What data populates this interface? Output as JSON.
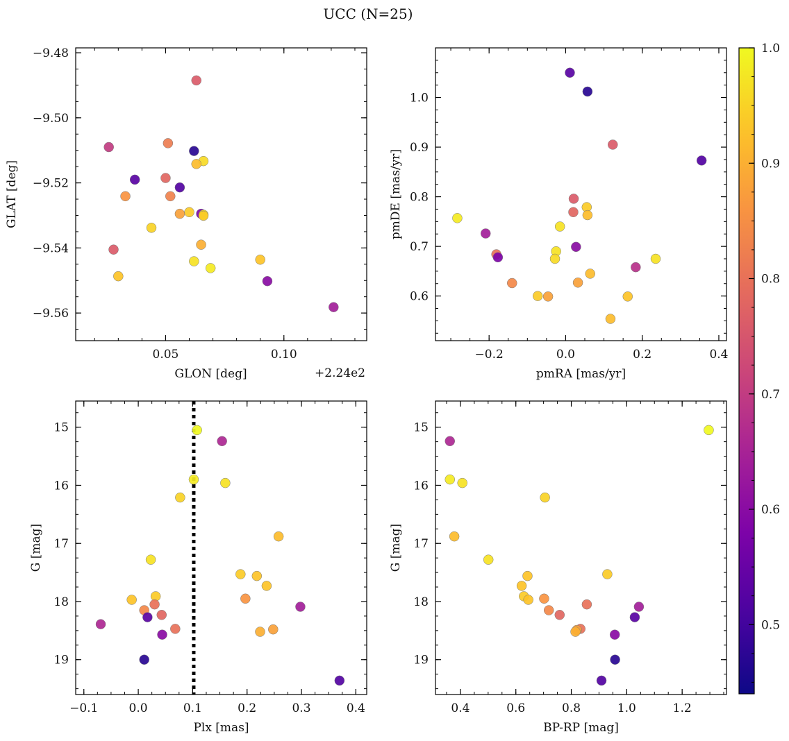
{
  "figure": {
    "suptitle": "UCC (N=25)"
  },
  "colorbar": {
    "min": 0.44,
    "max": 1.0,
    "ticks": [
      "0.5",
      "0.6",
      "0.7",
      "0.8",
      "0.9",
      "1.0"
    ],
    "colormap": "plasma"
  },
  "chart_data": [
    {
      "type": "scatter",
      "xlabel": "GLON [deg]",
      "ylabel": "GLAT [deg]",
      "offset_text": "+2.24e2",
      "xlim": [
        224.012,
        224.135
      ],
      "ylim": [
        -9.5685,
        -9.4785
      ],
      "y_inverted": false,
      "xticks": [
        {
          "value": 224.05,
          "label": "0.05"
        },
        {
          "value": 224.1,
          "label": "0.10"
        }
      ],
      "yticks": [
        {
          "value": -9.48,
          "label": "−9.48"
        },
        {
          "value": -9.5,
          "label": "−9.50"
        },
        {
          "value": -9.52,
          "label": "−9.52"
        },
        {
          "value": -9.54,
          "label": "−9.54"
        },
        {
          "value": -9.56,
          "label": "−9.56"
        }
      ],
      "points": [
        {
          "x": 224.063,
          "y": -9.4885,
          "c": 0.76
        },
        {
          "x": 224.026,
          "y": -9.509,
          "c": 0.7
        },
        {
          "x": 224.051,
          "y": -9.5078,
          "c": 0.82
        },
        {
          "x": 224.062,
          "y": -9.5102,
          "c": 0.47
        },
        {
          "x": 224.066,
          "y": -9.5133,
          "c": 0.96
        },
        {
          "x": 224.063,
          "y": -9.5142,
          "c": 0.92
        },
        {
          "x": 224.037,
          "y": -9.519,
          "c": 0.53
        },
        {
          "x": 224.05,
          "y": -9.5185,
          "c": 0.78
        },
        {
          "x": 224.056,
          "y": -9.5214,
          "c": 0.52
        },
        {
          "x": 224.033,
          "y": -9.5241,
          "c": 0.86
        },
        {
          "x": 224.052,
          "y": -9.5241,
          "c": 0.83
        },
        {
          "x": 224.056,
          "y": -9.5295,
          "c": 0.88
        },
        {
          "x": 224.06,
          "y": -9.529,
          "c": 0.94
        },
        {
          "x": 224.065,
          "y": -9.5295,
          "c": 0.58
        },
        {
          "x": 224.066,
          "y": -9.5298,
          "c": 0.97
        },
        {
          "x": 224.066,
          "y": -9.5301,
          "c": 0.94
        },
        {
          "x": 224.044,
          "y": -9.5338,
          "c": 0.95
        },
        {
          "x": 224.065,
          "y": -9.539,
          "c": 0.9
        },
        {
          "x": 224.028,
          "y": -9.5405,
          "c": 0.76
        },
        {
          "x": 224.062,
          "y": -9.5441,
          "c": 0.97
        },
        {
          "x": 224.09,
          "y": -9.5436,
          "c": 0.93
        },
        {
          "x": 224.069,
          "y": -9.5462,
          "c": 0.98
        },
        {
          "x": 224.03,
          "y": -9.5487,
          "c": 0.93
        },
        {
          "x": 224.093,
          "y": -9.5502,
          "c": 0.6
        },
        {
          "x": 224.121,
          "y": -9.5582,
          "c": 0.64
        }
      ]
    },
    {
      "type": "scatter",
      "xlabel": "pmRA [mas/yr]",
      "ylabel": "pmDE [mas/yr]",
      "xlim": [
        -0.34,
        0.42
      ],
      "ylim": [
        0.51,
        1.1
      ],
      "y_inverted": false,
      "xticks": [
        {
          "value": -0.2,
          "label": "−0.2"
        },
        {
          "value": 0.0,
          "label": "0.0"
        },
        {
          "value": 0.2,
          "label": "0.2"
        },
        {
          "value": 0.4,
          "label": "0.4"
        }
      ],
      "yticks": [
        {
          "value": 0.6,
          "label": "0.6"
        },
        {
          "value": 0.7,
          "label": "0.7"
        },
        {
          "value": 0.8,
          "label": "0.8"
        },
        {
          "value": 0.9,
          "label": "0.9"
        },
        {
          "value": 1.0,
          "label": "1.0"
        }
      ],
      "points": [
        {
          "x": 0.011,
          "y": 1.05,
          "c": 0.53
        },
        {
          "x": 0.057,
          "y": 1.012,
          "c": 0.47
        },
        {
          "x": 0.123,
          "y": 0.905,
          "c": 0.76
        },
        {
          "x": 0.355,
          "y": 0.873,
          "c": 0.52
        },
        {
          "x": 0.021,
          "y": 0.796,
          "c": 0.76
        },
        {
          "x": 0.055,
          "y": 0.779,
          "c": 0.94
        },
        {
          "x": 0.02,
          "y": 0.769,
          "c": 0.78
        },
        {
          "x": 0.057,
          "y": 0.763,
          "c": 0.92
        },
        {
          "x": -0.283,
          "y": 0.757,
          "c": 0.98
        },
        {
          "x": -0.015,
          "y": 0.74,
          "c": 0.97
        },
        {
          "x": -0.209,
          "y": 0.726,
          "c": 0.64
        },
        {
          "x": 0.027,
          "y": 0.699,
          "c": 0.6
        },
        {
          "x": -0.025,
          "y": 0.69,
          "c": 0.97
        },
        {
          "x": -0.181,
          "y": 0.684,
          "c": 0.8
        },
        {
          "x": -0.177,
          "y": 0.678,
          "c": 0.58
        },
        {
          "x": -0.028,
          "y": 0.675,
          "c": 0.96
        },
        {
          "x": 0.235,
          "y": 0.675,
          "c": 0.97
        },
        {
          "x": 0.183,
          "y": 0.658,
          "c": 0.68
        },
        {
          "x": 0.064,
          "y": 0.645,
          "c": 0.92
        },
        {
          "x": -0.14,
          "y": 0.626,
          "c": 0.84
        },
        {
          "x": 0.032,
          "y": 0.627,
          "c": 0.88
        },
        {
          "x": -0.073,
          "y": 0.6,
          "c": 0.94
        },
        {
          "x": -0.046,
          "y": 0.599,
          "c": 0.88
        },
        {
          "x": 0.162,
          "y": 0.599,
          "c": 0.93
        },
        {
          "x": 0.117,
          "y": 0.554,
          "c": 0.92
        }
      ]
    },
    {
      "type": "scatter",
      "xlabel": "Plx [mas]",
      "ylabel": "G [mag]",
      "xlim": [
        -0.115,
        0.42
      ],
      "ylim": [
        14.55,
        19.6
      ],
      "y_inverted": true,
      "vline": {
        "x": 0.102,
        "style": "dotted"
      },
      "xticks": [
        {
          "value": -0.1,
          "label": "−0.1"
        },
        {
          "value": 0.0,
          "label": "0.0"
        },
        {
          "value": 0.1,
          "label": "0.1"
        },
        {
          "value": 0.2,
          "label": "0.2"
        },
        {
          "value": 0.3,
          "label": "0.3"
        },
        {
          "value": 0.4,
          "label": "0.4"
        }
      ],
      "yticks": [
        {
          "value": 15,
          "label": "15"
        },
        {
          "value": 16,
          "label": "16"
        },
        {
          "value": 17,
          "label": "17"
        },
        {
          "value": 18,
          "label": "18"
        },
        {
          "value": 19,
          "label": "19"
        }
      ],
      "points": [
        {
          "x": 0.108,
          "y": 15.05,
          "c": 1.0
        },
        {
          "x": 0.154,
          "y": 15.24,
          "c": 0.66
        },
        {
          "x": 0.102,
          "y": 15.9,
          "c": 0.98
        },
        {
          "x": 0.16,
          "y": 15.96,
          "c": 0.97
        },
        {
          "x": 0.077,
          "y": 16.21,
          "c": 0.95
        },
        {
          "x": 0.258,
          "y": 16.88,
          "c": 0.92
        },
        {
          "x": 0.023,
          "y": 17.28,
          "c": 0.97
        },
        {
          "x": 0.188,
          "y": 17.53,
          "c": 0.94
        },
        {
          "x": 0.218,
          "y": 17.56,
          "c": 0.93
        },
        {
          "x": 0.236,
          "y": 17.73,
          "c": 0.93
        },
        {
          "x": 0.032,
          "y": 17.91,
          "c": 0.94
        },
        {
          "x": 0.197,
          "y": 17.95,
          "c": 0.86
        },
        {
          "x": -0.012,
          "y": 17.97,
          "c": 0.93
        },
        {
          "x": 0.03,
          "y": 18.05,
          "c": 0.8
        },
        {
          "x": 0.298,
          "y": 18.09,
          "c": 0.64
        },
        {
          "x": 0.011,
          "y": 18.15,
          "c": 0.84
        },
        {
          "x": 0.043,
          "y": 18.23,
          "c": 0.78
        },
        {
          "x": 0.017,
          "y": 18.27,
          "c": 0.53
        },
        {
          "x": -0.069,
          "y": 18.39,
          "c": 0.66
        },
        {
          "x": 0.068,
          "y": 18.47,
          "c": 0.8
        },
        {
          "x": 0.248,
          "y": 18.48,
          "c": 0.88
        },
        {
          "x": 0.224,
          "y": 18.52,
          "c": 0.9
        },
        {
          "x": 0.044,
          "y": 18.57,
          "c": 0.6
        },
        {
          "x": 0.011,
          "y": 19.0,
          "c": 0.47
        },
        {
          "x": 0.37,
          "y": 19.36,
          "c": 0.52
        }
      ]
    },
    {
      "type": "scatter",
      "xlabel": "BP-RP [mag]",
      "ylabel": "G [mag]",
      "xlim": [
        0.31,
        1.36
      ],
      "ylim": [
        14.55,
        19.6
      ],
      "y_inverted": true,
      "xticks": [
        {
          "value": 0.4,
          "label": "0.4"
        },
        {
          "value": 0.6,
          "label": "0.6"
        },
        {
          "value": 0.8,
          "label": "0.8"
        },
        {
          "value": 1.0,
          "label": "1.0"
        },
        {
          "value": 1.2,
          "label": "1.2"
        }
      ],
      "yticks": [
        {
          "value": 15,
          "label": "15"
        },
        {
          "value": 16,
          "label": "16"
        },
        {
          "value": 17,
          "label": "17"
        },
        {
          "value": 18,
          "label": "18"
        },
        {
          "value": 19,
          "label": "19"
        }
      ],
      "points": [
        {
          "x": 1.296,
          "y": 15.05,
          "c": 1.0
        },
        {
          "x": 0.362,
          "y": 15.24,
          "c": 0.66
        },
        {
          "x": 0.362,
          "y": 15.9,
          "c": 0.98
        },
        {
          "x": 0.407,
          "y": 15.96,
          "c": 0.97
        },
        {
          "x": 0.705,
          "y": 16.21,
          "c": 0.95
        },
        {
          "x": 0.378,
          "y": 16.88,
          "c": 0.92
        },
        {
          "x": 0.501,
          "y": 17.28,
          "c": 0.97
        },
        {
          "x": 0.93,
          "y": 17.53,
          "c": 0.94
        },
        {
          "x": 0.642,
          "y": 17.56,
          "c": 0.93
        },
        {
          "x": 0.621,
          "y": 17.73,
          "c": 0.93
        },
        {
          "x": 0.629,
          "y": 17.91,
          "c": 0.94
        },
        {
          "x": 0.702,
          "y": 17.95,
          "c": 0.86
        },
        {
          "x": 0.645,
          "y": 17.97,
          "c": 0.93
        },
        {
          "x": 0.856,
          "y": 18.05,
          "c": 0.8
        },
        {
          "x": 1.044,
          "y": 18.09,
          "c": 0.64
        },
        {
          "x": 0.719,
          "y": 18.15,
          "c": 0.84
        },
        {
          "x": 0.758,
          "y": 18.23,
          "c": 0.78
        },
        {
          "x": 1.029,
          "y": 18.27,
          "c": 0.53
        },
        {
          "x": 0.833,
          "y": 18.47,
          "c": 0.8
        },
        {
          "x": 0.82,
          "y": 18.49,
          "c": 0.88
        },
        {
          "x": 0.815,
          "y": 18.52,
          "c": 0.9
        },
        {
          "x": 0.957,
          "y": 18.57,
          "c": 0.6
        },
        {
          "x": 0.958,
          "y": 19.0,
          "c": 0.47
        },
        {
          "x": 0.909,
          "y": 19.36,
          "c": 0.52
        }
      ]
    }
  ]
}
